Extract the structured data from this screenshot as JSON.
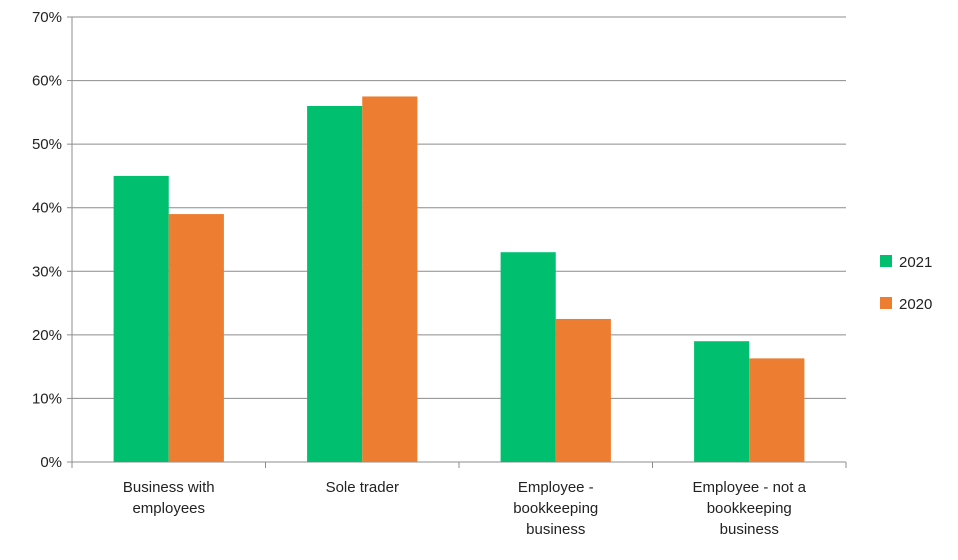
{
  "chart_data": {
    "type": "bar",
    "title": "",
    "xlabel": "",
    "ylabel": "",
    "categories": [
      [
        "Business with",
        "employees"
      ],
      [
        "Sole trader"
      ],
      [
        "Employee -",
        "bookkeeping",
        "business"
      ],
      [
        "Employee - not a",
        "bookkeeping",
        "business"
      ]
    ],
    "series": [
      {
        "name": "2021",
        "color": "#00c070",
        "values": [
          45,
          56,
          33,
          19
        ]
      },
      {
        "name": "2020",
        "color": "#ed7d31",
        "values": [
          39,
          57.5,
          22.5,
          16.3
        ]
      }
    ],
    "ylim": [
      0,
      70
    ],
    "y_ticks": [
      0,
      10,
      20,
      30,
      40,
      50,
      60,
      70
    ],
    "y_tick_format": "percent",
    "grid": true,
    "legend_position": "right"
  }
}
